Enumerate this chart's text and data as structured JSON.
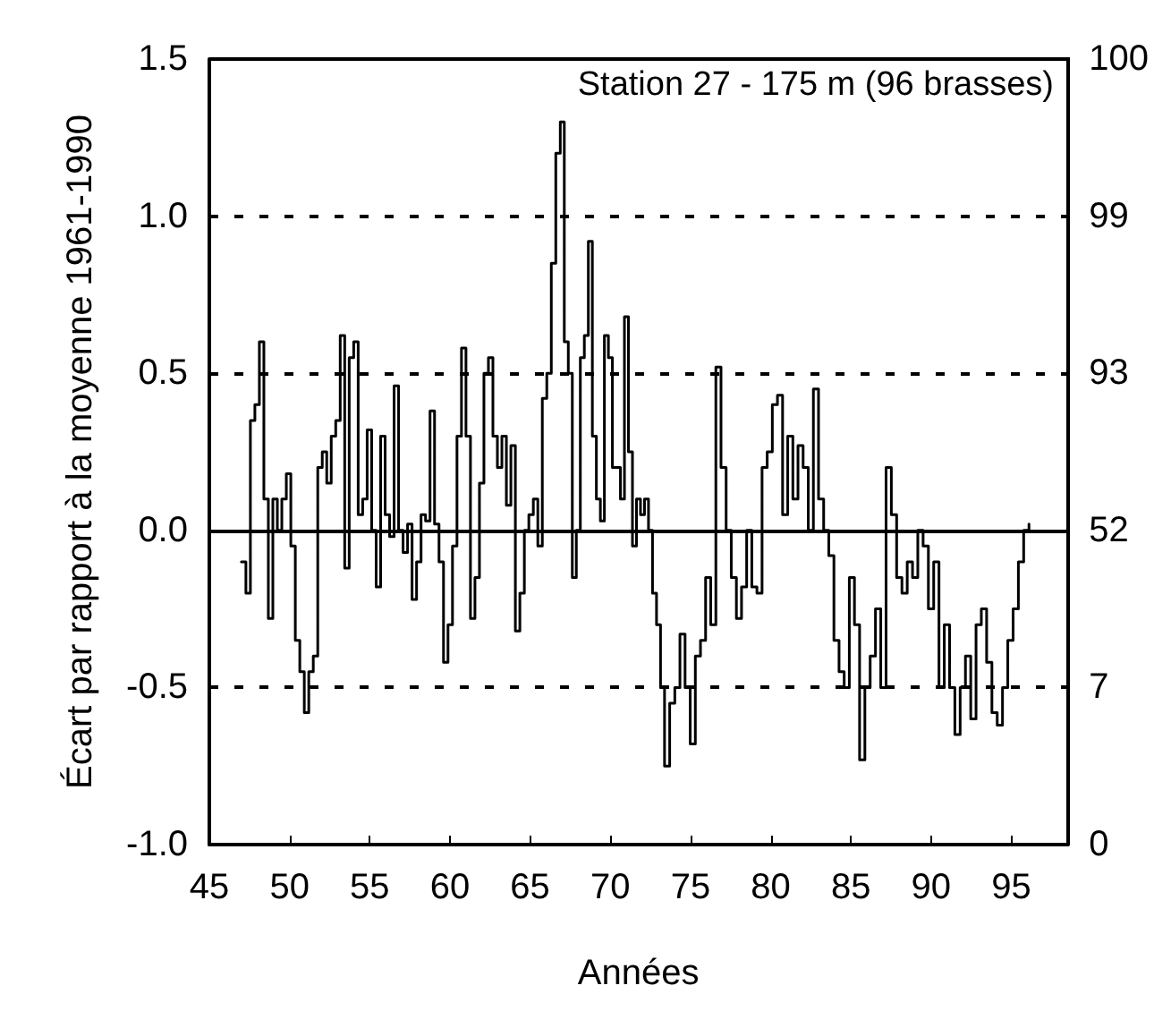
{
  "chart_data": {
    "type": "step",
    "xlabel": "Années",
    "ylabel": "Écart par rapport à la moyenne 1961-1990",
    "annotations": [
      "Station 27 - 175 m (96 brasses)"
    ],
    "xlim": [
      45,
      98.5
    ],
    "xticks": [
      45,
      50,
      55,
      60,
      65,
      70,
      75,
      80,
      85,
      90,
      95
    ],
    "ylim": [
      -1.0,
      1.5
    ],
    "yticks": [
      {
        "value": -1.0,
        "label": "-1.0"
      },
      {
        "value": -0.5,
        "label": "-0.5"
      },
      {
        "value": 0,
        "label": "0.0"
      },
      {
        "value": 0.5,
        "label": "0.5"
      },
      {
        "value": 1.0,
        "label": "1.0"
      },
      {
        "value": 1.5,
        "label": "1.5"
      }
    ],
    "y2_categories": [
      "100",
      "99",
      "93",
      "52",
      "7",
      "0"
    ],
    "grid": "y",
    "ref_lines": [
      {
        "axis": "y",
        "value": 0,
        "line_style": "solid",
        "color": "#000000"
      }
    ],
    "series": [
      {
        "color": "#000000",
        "x": [
          47,
          47.28,
          47.56,
          47.84,
          48.12,
          48.4,
          48.68,
          48.96,
          49.24,
          49.52,
          49.8,
          50.08,
          50.36,
          50.64,
          50.92,
          51.2,
          51.48,
          51.76,
          52.04,
          52.32,
          52.6,
          52.88,
          53.16,
          53.44,
          53.72,
          54,
          54.28,
          54.56,
          54.84,
          55.12,
          55.4,
          55.68,
          55.96,
          56.24,
          56.52,
          56.8,
          57.08,
          57.36,
          57.64,
          57.92,
          58.2,
          58.48,
          58.76,
          59.04,
          59.32,
          59.6,
          59.88,
          60.16,
          60.44,
          60.72,
          61,
          61.28,
          61.56,
          61.84,
          62.12,
          62.4,
          62.68,
          62.96,
          63.24,
          63.52,
          63.8,
          64.08,
          64.36,
          64.64,
          64.92,
          65.2,
          65.48,
          65.76,
          66.04,
          66.32,
          66.6,
          66.88,
          67.13,
          67.38,
          67.63,
          67.88,
          68.13,
          68.38,
          68.63,
          68.88,
          69.13,
          69.38,
          69.63,
          69.88,
          70.13,
          70.38,
          70.63,
          70.88,
          71.13,
          71.38,
          71.63,
          71.88,
          72.13,
          72.38,
          72.63,
          72.88,
          73.13,
          73.38,
          73.7,
          74.02,
          74.34,
          74.66,
          74.98,
          75.3,
          75.62,
          75.94,
          76.26,
          76.58,
          76.9,
          77.22,
          77.54,
          77.86,
          78.18,
          78.5,
          78.82,
          79.14,
          79.46,
          79.78,
          80.1,
          80.42,
          80.74,
          81.06,
          81.38,
          81.7,
          82.02,
          82.34,
          82.66,
          82.98,
          83.3,
          83.62,
          83.94,
          84.26,
          84.58,
          84.9,
          85.22,
          85.54,
          85.87,
          86.2,
          86.53,
          86.86,
          87.19,
          87.52,
          87.85,
          88.18,
          88.51,
          88.84,
          89.17,
          89.5,
          89.83,
          90.16,
          90.49,
          90.82,
          91.15,
          91.48,
          91.81,
          92.14,
          92.47,
          92.8,
          93.13,
          93.46,
          93.79,
          94.12,
          94.45,
          94.78,
          95.11,
          95.44,
          95.77,
          96.1
        ],
        "values": [
          -0.1,
          -0.2,
          0.35,
          0.4,
          0.6,
          0.1,
          -0.28,
          0.1,
          0.0,
          0.1,
          0.18,
          -0.05,
          -0.35,
          -0.45,
          -0.58,
          -0.45,
          -0.4,
          0.2,
          0.25,
          0.15,
          0.3,
          0.35,
          0.62,
          -0.12,
          0.55,
          0.6,
          0.05,
          0.1,
          0.32,
          0.0,
          -0.18,
          0.3,
          0.05,
          -0.02,
          0.46,
          0.0,
          -0.07,
          0.02,
          -0.22,
          -0.1,
          0.05,
          0.03,
          0.38,
          0.02,
          -0.1,
          -0.42,
          -0.3,
          -0.05,
          0.3,
          0.58,
          0.3,
          -0.28,
          -0.15,
          0.15,
          0.5,
          0.55,
          0.3,
          0.2,
          0.3,
          0.08,
          0.27,
          -0.32,
          -0.2,
          0.0,
          0.05,
          0.1,
          -0.05,
          0.42,
          0.5,
          0.85,
          1.2,
          1.3,
          0.6,
          0.5,
          -0.15,
          0.0,
          0.55,
          0.62,
          0.92,
          0.3,
          0.1,
          0.03,
          0.62,
          0.55,
          0.2,
          0.2,
          0.1,
          0.68,
          0.25,
          -0.05,
          0.1,
          0.05,
          0.1,
          0.0,
          -0.2,
          -0.3,
          -0.5,
          -0.75,
          -0.55,
          -0.5,
          -0.33,
          -0.5,
          -0.68,
          -0.4,
          -0.35,
          -0.15,
          -0.3,
          0.52,
          0.2,
          0.0,
          -0.15,
          -0.28,
          -0.18,
          0.0,
          -0.18,
          -0.2,
          0.2,
          0.25,
          0.4,
          0.43,
          0.05,
          0.3,
          0.1,
          0.27,
          0.2,
          0.0,
          0.45,
          0.1,
          0.0,
          -0.08,
          -0.35,
          -0.45,
          -0.5,
          -0.15,
          -0.3,
          -0.73,
          -0.5,
          -0.4,
          -0.25,
          -0.5,
          0.2,
          0.05,
          -0.15,
          -0.2,
          -0.1,
          -0.15,
          0.0,
          -0.05,
          -0.25,
          -0.1,
          -0.5,
          -0.3,
          -0.5,
          -0.65,
          -0.5,
          -0.4,
          -0.6,
          -0.3,
          -0.25,
          -0.42,
          -0.58,
          -0.62,
          -0.5,
          -0.35,
          -0.25,
          -0.1,
          0.0,
          0.02
        ]
      }
    ]
  }
}
